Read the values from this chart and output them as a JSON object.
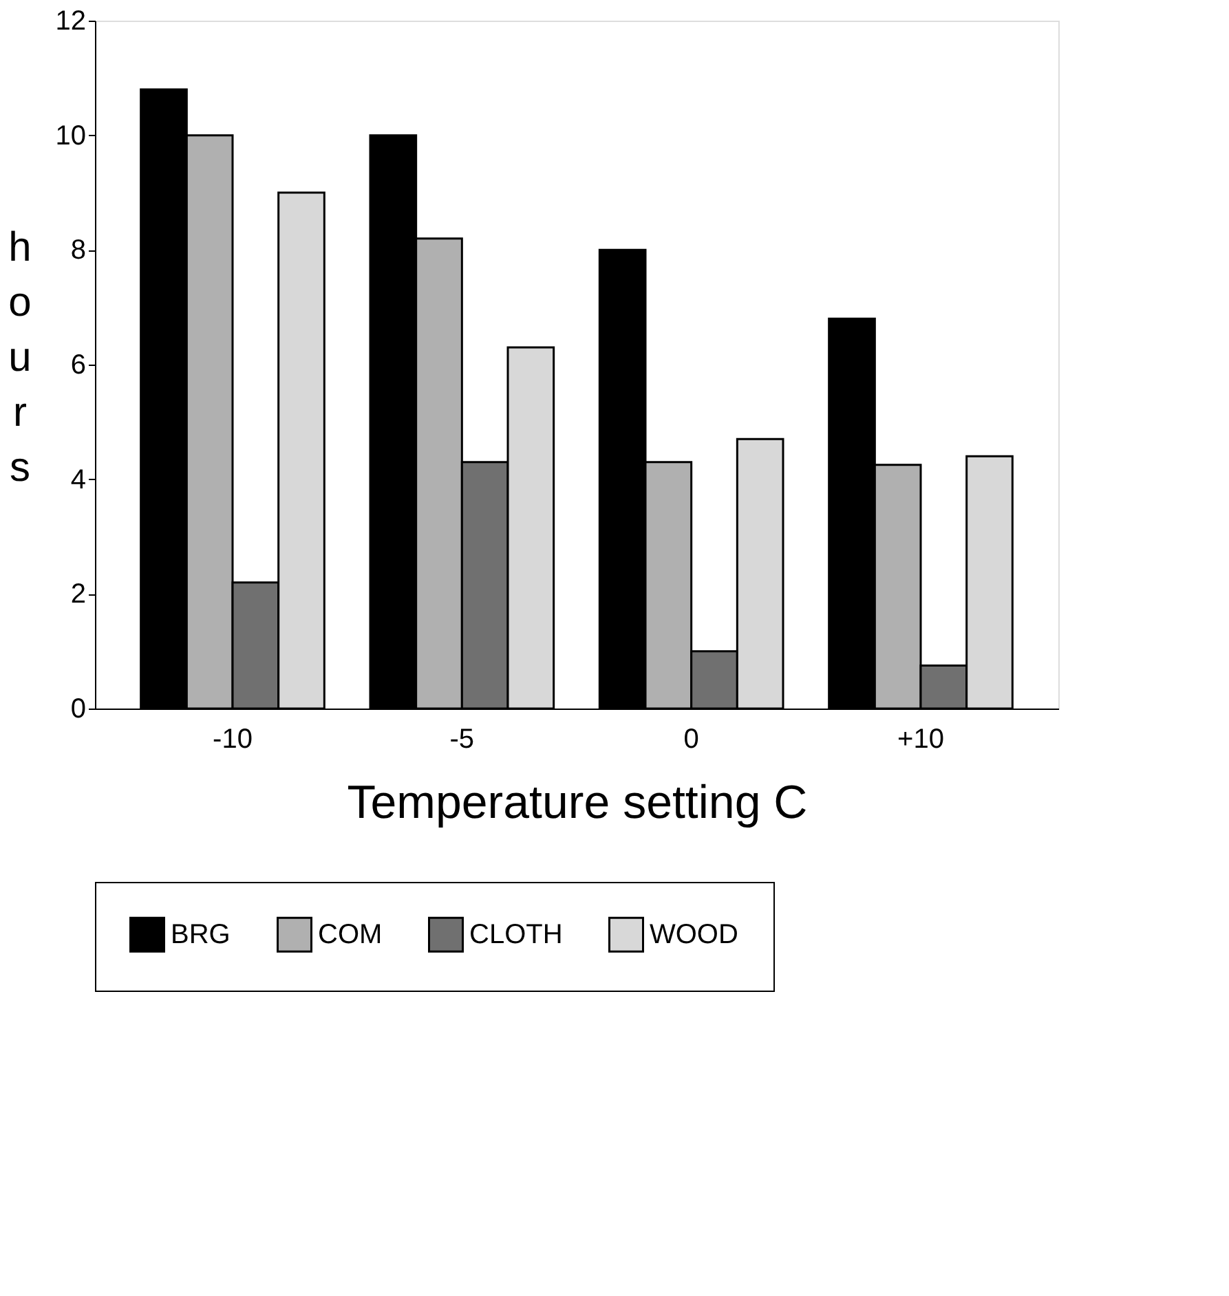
{
  "chart_data": {
    "type": "bar",
    "xlabel": "Temperature setting C",
    "ylabel": "hours",
    "categories": [
      "-10",
      "-5",
      "0",
      "+10"
    ],
    "series": [
      {
        "name": "BRG",
        "color": "#000000",
        "values": [
          10.8,
          10,
          8,
          6.8
        ]
      },
      {
        "name": "COM",
        "color": "#b0b0b0",
        "values": [
          10,
          8.2,
          4.3,
          4.25
        ]
      },
      {
        "name": "CLOTH",
        "color": "#707070",
        "values": [
          2.2,
          4.3,
          1.0,
          0.75
        ]
      },
      {
        "name": "WOOD",
        "color": "#d8d8d8",
        "values": [
          9,
          6.3,
          4.7,
          4.4
        ]
      }
    ],
    "ylim": [
      0,
      12
    ],
    "yticks": [
      0,
      2,
      4,
      6,
      8,
      10,
      12
    ],
    "grid": false,
    "legend": "bottom"
  }
}
